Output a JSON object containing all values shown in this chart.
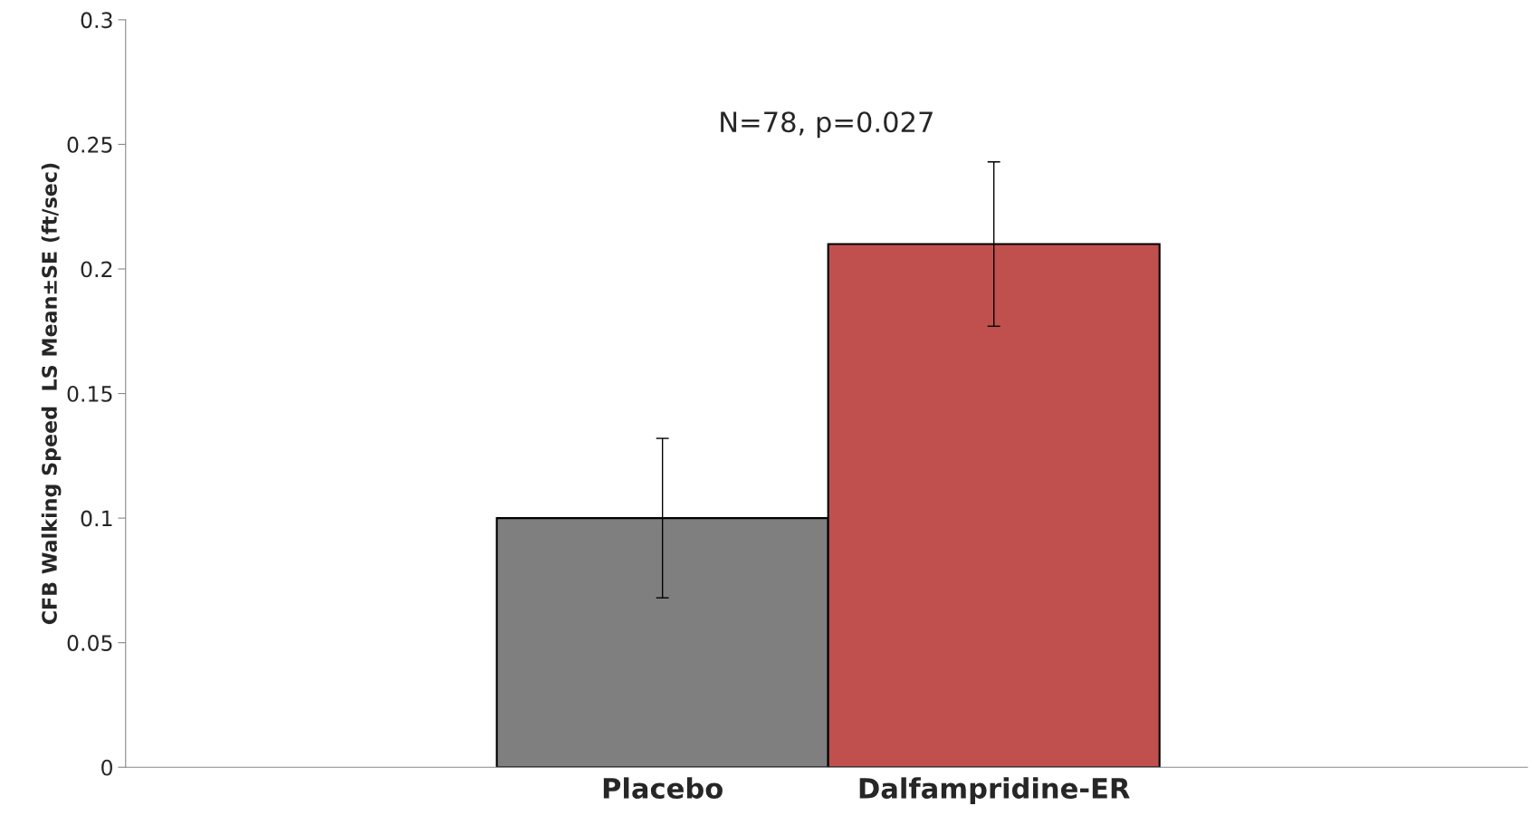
{
  "chart_data": {
    "type": "bar",
    "ylabel": "CFB Walking Speed  LS Mean±SE (ft/sec)",
    "categories": [
      "Placebo",
      "Dalfampridine-ER"
    ],
    "values": [
      0.1,
      0.21
    ],
    "colors": [
      "#7f7f7f",
      "#c0504d"
    ],
    "errors": [
      0.032,
      0.033
    ],
    "annotations": [
      "N=78, p=0.027"
    ],
    "ylim": [
      0,
      0.3
    ],
    "yticks": [
      0,
      0.05,
      0.1,
      0.15,
      0.2,
      0.25,
      0.3
    ],
    "grid": false,
    "legend": false
  }
}
